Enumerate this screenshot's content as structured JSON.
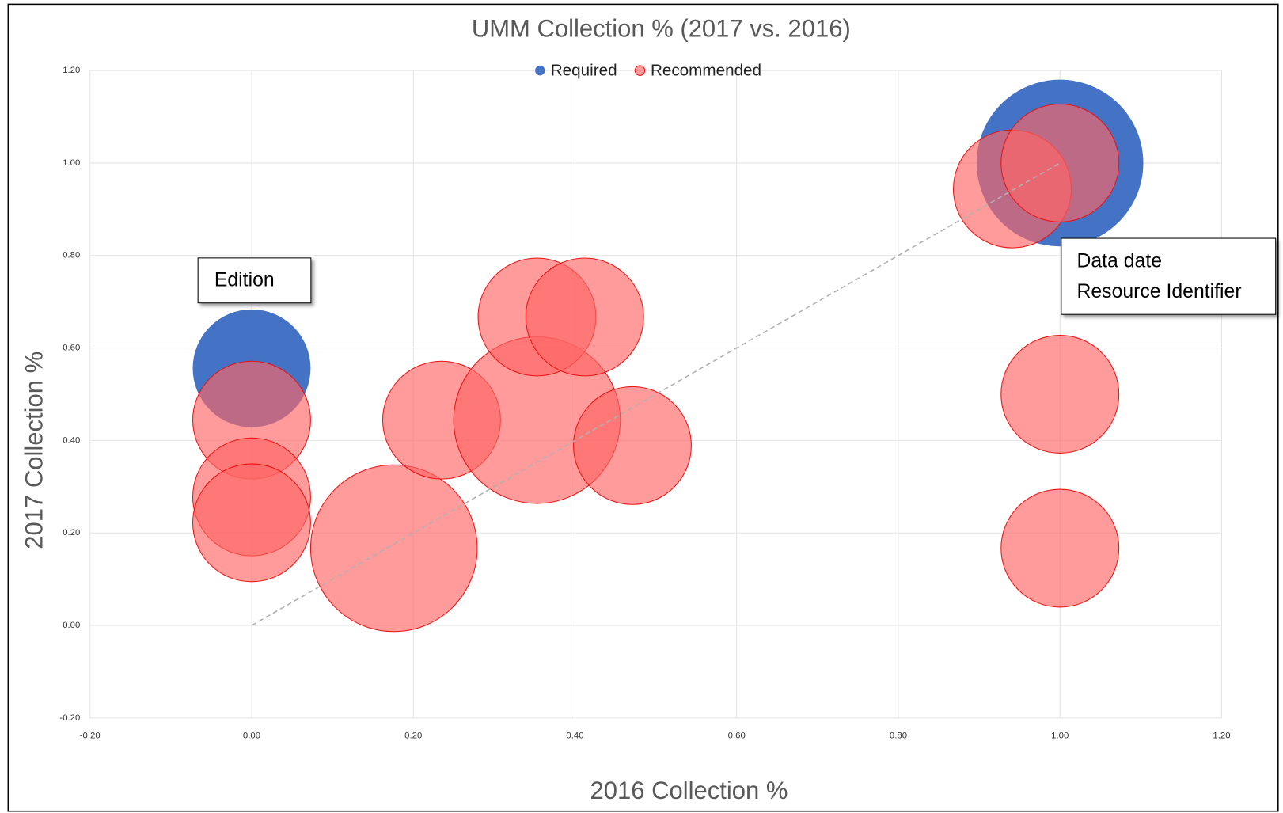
{
  "chart_data": {
    "type": "bubble",
    "title": "UMM Collection % (2017 vs. 2016)",
    "x_label": "2016 Collection %",
    "y_label": "2017 Collection %",
    "xlim": [
      -0.2,
      1.2
    ],
    "ylim": [
      -0.2,
      1.2
    ],
    "xticks": [
      {
        "value": -0.2,
        "label": "-0.20"
      },
      {
        "value": 0,
        "label": "0.00"
      },
      {
        "value": 0.2,
        "label": "0.20"
      },
      {
        "value": 0.4,
        "label": "0.40"
      },
      {
        "value": 0.6,
        "label": "0.60"
      },
      {
        "value": 0.8,
        "label": "0.80"
      },
      {
        "value": 1.0,
        "label": "1.00"
      },
      {
        "value": 1.2,
        "label": "1.20"
      }
    ],
    "yticks": [
      {
        "value": -0.2,
        "label": "-0.20"
      },
      {
        "value": 0,
        "label": "0.00"
      },
      {
        "value": 0.2,
        "label": "0.20"
      },
      {
        "value": 0.4,
        "label": "0.40"
      },
      {
        "value": 0.6,
        "label": "0.60"
      },
      {
        "value": 0.8,
        "label": "0.80"
      },
      {
        "value": 1.0,
        "label": "1.00"
      },
      {
        "value": 1.2,
        "label": "1.20"
      }
    ],
    "grid": true,
    "legend": "top",
    "series": [
      {
        "name": "Required",
        "color": "#4472c4",
        "opacity": 1,
        "x": [
          0,
          1.0
        ],
        "values": [
          0.556,
          1.0
        ],
        "sizes": [
          1,
          2
        ]
      },
      {
        "name": "Recommended",
        "color": "#ff6666",
        "opacity": 0.65,
        "x": [
          0,
          0,
          0,
          0.176,
          0.235,
          0.353,
          0.353,
          0.412,
          0.471,
          0.941,
          1.0,
          1.0,
          1.0
        ],
        "values": [
          0.444,
          0.278,
          0.222,
          0.167,
          0.444,
          0.444,
          0.667,
          0.667,
          0.389,
          0.944,
          1.0,
          0.5,
          0.167
        ],
        "sizes": [
          1,
          1,
          1,
          2,
          1,
          2,
          1,
          1,
          1,
          1,
          1,
          1,
          1
        ]
      }
    ],
    "reference_line": {
      "x": [
        0,
        1
      ],
      "values": [
        0,
        1
      ]
    },
    "annotations": [
      {
        "lines": [
          "Edition"
        ]
      },
      {
        "lines": [
          "Data date",
          "Resource Identifier"
        ]
      }
    ]
  }
}
